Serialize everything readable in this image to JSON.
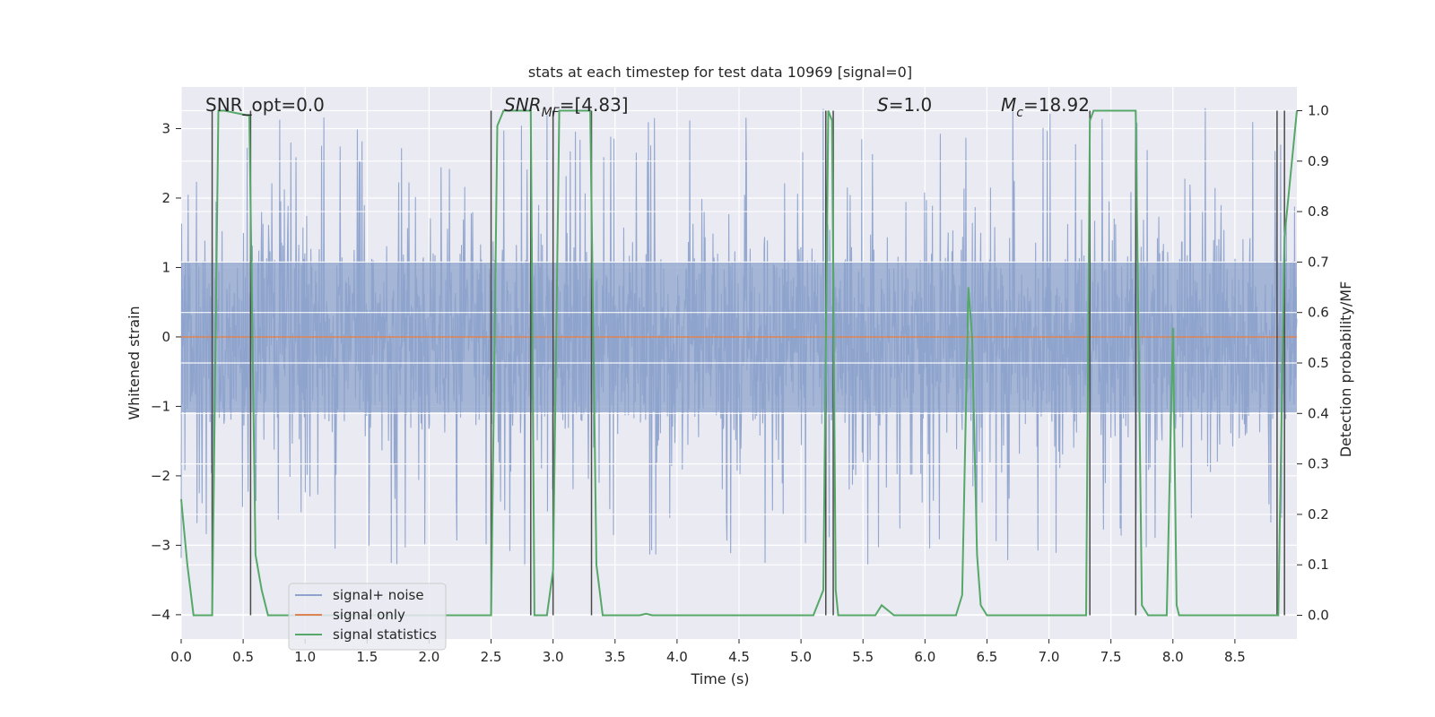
{
  "chart_data": {
    "type": "line",
    "title": "stats at each timestep for test data 10969 [signal=0]",
    "xlabel": "Time (s)",
    "ylabel": "Whitened strain",
    "y2label": "Detection probability/MF",
    "xlim": [
      0.0,
      9.0
    ],
    "ylim": [
      -4.35,
      3.6
    ],
    "y2lim": [
      -0.047,
      1.047
    ],
    "xticks": [
      "0.0",
      "0.5",
      "1.0",
      "1.5",
      "2.0",
      "2.5",
      "3.0",
      "3.5",
      "4.0",
      "4.5",
      "5.0",
      "5.5",
      "6.0",
      "6.5",
      "7.0",
      "7.5",
      "8.0",
      "8.5"
    ],
    "yticks": [
      "3",
      "2",
      "1",
      "0",
      "−1",
      "−2",
      "−3",
      "−4"
    ],
    "y2ticks": [
      "1.0",
      "0.9",
      "0.8",
      "0.7",
      "0.6",
      "0.5",
      "0.4",
      "0.3",
      "0.2",
      "0.1",
      "0.0"
    ],
    "annotations": {
      "snr_opt": "SNR_opt=0.0",
      "snr_mf_main": "SNR",
      "snr_mf_sub": "MF",
      "snr_mf_val": "=[4.83]",
      "s_sym": "S",
      "s_val": "=1.0",
      "mc_main": "M",
      "mc_sub": "c",
      "mc_val": "=18.92"
    },
    "legend": {
      "position": "lower-left",
      "entries": [
        "signal+ noise",
        "signal only",
        "signal statistics"
      ]
    },
    "colors": {
      "noise": "#8ea3cc",
      "signal": "#dd8452",
      "stats": "#55a868",
      "vlines": "#4a4a4a",
      "plot_bg": "#eaeaf2",
      "grid": "#ffffff"
    },
    "series": [
      {
        "name": "signal+ noise",
        "type": "noise-band",
        "description_values": {
          "core_range": [
            -1.75,
            1.75
          ],
          "spike_max": 3.3,
          "spike_min": -4.0
        }
      },
      {
        "name": "signal only",
        "x": [
          0.0,
          9.0
        ],
        "y": [
          0.0,
          0.0
        ]
      },
      {
        "name": "signal statistics",
        "axis": "y2",
        "x": [
          0.0,
          0.05,
          0.1,
          0.25,
          0.3,
          0.35,
          0.55,
          0.6,
          0.65,
          0.7,
          0.75,
          2.2,
          2.25,
          2.5,
          2.55,
          2.6,
          2.65,
          2.7,
          2.75,
          2.8,
          2.82,
          2.85,
          2.9,
          2.95,
          3.0,
          3.05,
          3.1,
          3.15,
          3.3,
          3.35,
          3.4,
          3.5,
          3.7,
          3.75,
          3.8,
          5.1,
          5.18,
          5.22,
          5.25,
          5.28,
          5.3,
          5.35,
          5.45,
          5.6,
          5.65,
          5.7,
          5.75,
          5.8,
          6.25,
          6.3,
          6.35,
          6.38,
          6.42,
          6.45,
          6.5,
          6.55,
          6.6,
          7.3,
          7.33,
          7.36,
          7.4,
          7.7,
          7.75,
          7.8,
          7.9,
          7.95,
          8.0,
          8.03,
          8.05,
          8.1,
          8.85,
          8.9,
          9.0
        ],
        "y": [
          0.23,
          0.1,
          0.0,
          0.0,
          1.0,
          1.0,
          0.99,
          0.12,
          0.05,
          0.0,
          0.0,
          0.0,
          0.0,
          0.0,
          0.97,
          1.0,
          1.0,
          1.0,
          1.0,
          1.0,
          1.0,
          0.0,
          0.0,
          0.0,
          0.09,
          1.0,
          1.0,
          1.0,
          1.0,
          0.1,
          0.0,
          0.0,
          0.0,
          0.003,
          0.0,
          0.0,
          0.05,
          1.0,
          0.98,
          0.05,
          0.0,
          0.0,
          0.0,
          0.0,
          0.02,
          0.01,
          0.0,
          0.0,
          0.0,
          0.04,
          0.65,
          0.55,
          0.12,
          0.02,
          0.0,
          0.0,
          0.0,
          0.0,
          0.98,
          1.0,
          1.0,
          1.0,
          0.02,
          0.0,
          0.0,
          0.0,
          0.57,
          0.02,
          0.0,
          0.0,
          0.0,
          0.75,
          1.0
        ]
      }
    ],
    "vlines_x": [
      0.25,
      0.56,
      2.5,
      2.82,
      3.0,
      3.31,
      5.2,
      5.26,
      7.33,
      7.7,
      8.84,
      8.9
    ]
  }
}
